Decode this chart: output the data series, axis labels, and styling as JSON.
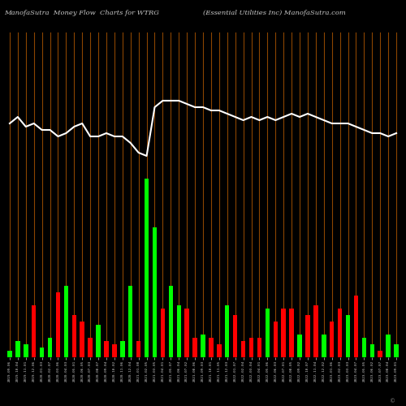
{
  "title_left": "ManofaSutra  Money Flow  Charts for WTRG",
  "title_right": "(Essential Utilities Inc) ManofaSutra.com",
  "background_color": "#000000",
  "bar_colors": [
    "#00ff00",
    "#00ff00",
    "#00ff00",
    "#ff0000",
    "#00ff00",
    "#00ff00",
    "#ff0000",
    "#00ff00",
    "#ff0000",
    "#ff0000",
    "#ff0000",
    "#00ff00",
    "#ff0000",
    "#ff0000",
    "#00ff00",
    "#00ff00",
    "#ff0000",
    "#00ff00",
    "#00ff00",
    "#ff0000",
    "#00ff00",
    "#00ff00",
    "#ff0000",
    "#ff0000",
    "#00ff00",
    "#ff0000",
    "#ff0000",
    "#00ff00",
    "#ff0000",
    "#ff0000",
    "#ff0000",
    "#ff0000",
    "#00ff00",
    "#ff0000",
    "#ff0000",
    "#ff0000",
    "#00ff00",
    "#ff0000",
    "#ff0000",
    "#00ff00",
    "#ff0000",
    "#ff0000",
    "#00ff00",
    "#ff0000",
    "#00ff00",
    "#00ff00",
    "#ff0000",
    "#00ff00",
    "#00ff00"
  ],
  "bar_heights": [
    2,
    5,
    4,
    16,
    3,
    6,
    20,
    22,
    13,
    11,
    6,
    10,
    5,
    4,
    5,
    22,
    5,
    55,
    40,
    15,
    22,
    16,
    15,
    6,
    7,
    6,
    4,
    16,
    13,
    5,
    6,
    6,
    15,
    11,
    15,
    15,
    7,
    13,
    16,
    7,
    11,
    15,
    13,
    19,
    6,
    4,
    2,
    7,
    4
  ],
  "line_values": [
    72,
    74,
    71,
    72,
    70,
    70,
    68,
    69,
    71,
    72,
    68,
    68,
    69,
    68,
    68,
    66,
    63,
    62,
    77,
    79,
    79,
    79,
    78,
    77,
    77,
    76,
    76,
    75,
    74,
    73,
    74,
    73,
    74,
    73,
    74,
    75,
    74,
    75,
    74,
    73,
    72,
    72,
    72,
    71,
    70,
    69,
    69,
    68,
    69
  ],
  "vline_color": "#8B4500",
  "line_color": "#ffffff",
  "xlabel_color": "#cccccc",
  "n_bars": 49,
  "ylim_max": 100,
  "x_labels": [
    "2019-09-06",
    "2019-10-04",
    "2019-11-01",
    "2019-12-06",
    "2020-01-03",
    "2020-02-07",
    "2020-03-06",
    "2020-04-03",
    "2020-05-01",
    "2020-06-05",
    "2020-07-03",
    "2020-08-07",
    "2020-09-04",
    "2020-10-02",
    "2020-11-06",
    "2020-12-04",
    "2021-01-08",
    "2021-02-05",
    "2021-03-05",
    "2021-04-01",
    "2021-05-07",
    "2021-06-04",
    "2021-07-02",
    "2021-08-06",
    "2021-09-03",
    "2021-10-01",
    "2021-11-05",
    "2021-12-03",
    "2022-01-07",
    "2022-02-04",
    "2022-03-04",
    "2022-04-01",
    "2022-05-06",
    "2022-06-03",
    "2022-07-01",
    "2022-08-05",
    "2022-09-02",
    "2022-10-07",
    "2022-11-04",
    "2022-12-02",
    "2023-01-06",
    "2023-02-03",
    "2023-03-03",
    "2023-04-07",
    "2023-05-05",
    "2023-06-02",
    "2023-07-07",
    "2023-08-04",
    "2023-09-01"
  ],
  "copyright": "©"
}
